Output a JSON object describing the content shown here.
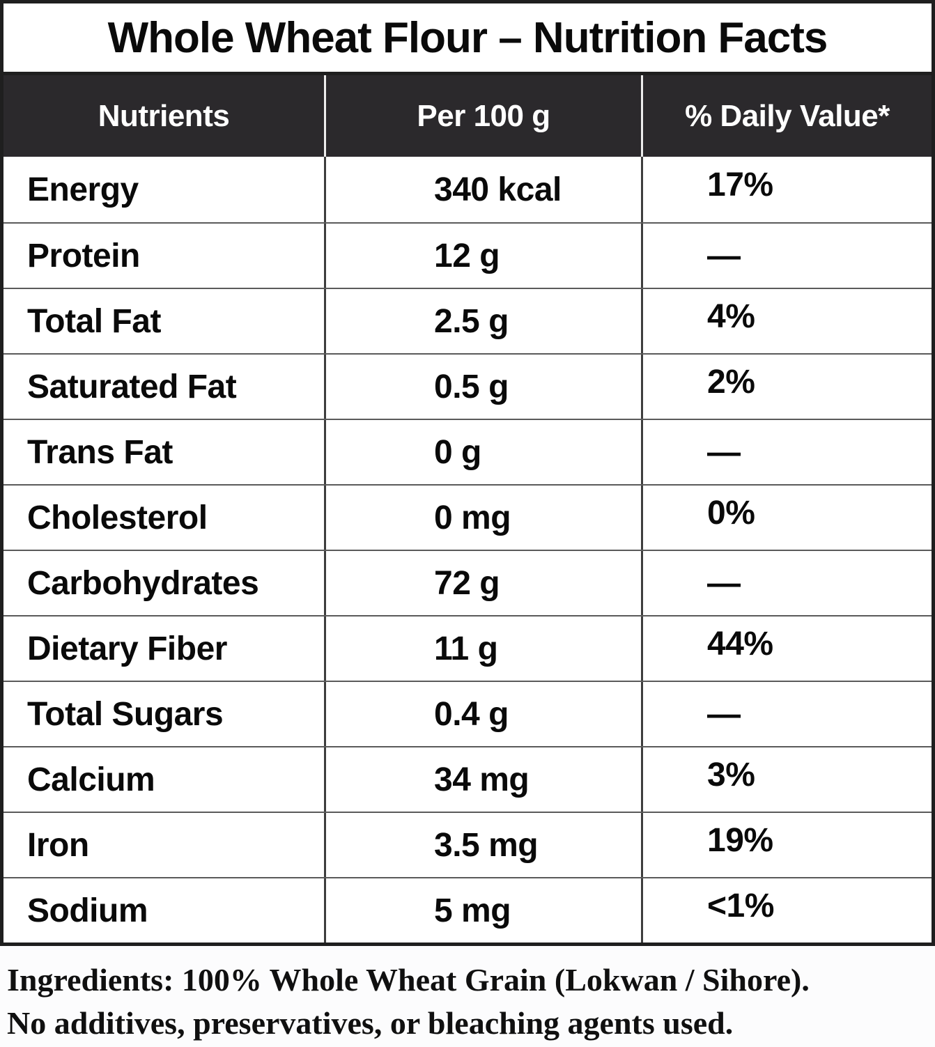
{
  "title": "Whole Wheat Flour – Nutrition Facts",
  "table": {
    "headers": [
      "Nutrients",
      "Per 100 g",
      "% Daily Value*"
    ],
    "rows": [
      {
        "nutrient": "Energy",
        "per_100g": "340 kcal",
        "daily_value": "17%"
      },
      {
        "nutrient": "Protein",
        "per_100g": "12 g",
        "daily_value": "—"
      },
      {
        "nutrient": "Total Fat",
        "per_100g": "2.5 g",
        "daily_value": "4%"
      },
      {
        "nutrient": "Saturated Fat",
        "per_100g": "0.5 g",
        "daily_value": "2%"
      },
      {
        "nutrient": "Trans Fat",
        "per_100g": "0 g",
        "daily_value": "—"
      },
      {
        "nutrient": "Cholesterol",
        "per_100g": "0 mg",
        "daily_value": "0%"
      },
      {
        "nutrient": "Carbohydrates",
        "per_100g": "72 g",
        "daily_value": "—"
      },
      {
        "nutrient": "Dietary Fiber",
        "per_100g": "11 g",
        "daily_value": "44%"
      },
      {
        "nutrient": "Total Sugars",
        "per_100g": "0.4 g",
        "daily_value": "—"
      },
      {
        "nutrient": "Calcium",
        "per_100g": "34 mg",
        "daily_value": "3%"
      },
      {
        "nutrient": "Iron",
        "per_100g": "3.5 mg",
        "daily_value": "19%"
      },
      {
        "nutrient": "Sodium",
        "per_100g": "5 mg",
        "daily_value": "<1%"
      }
    ]
  },
  "footer": {
    "line1": "Ingredients: 100% Whole Wheat Grain (Lokwan / Sihore).",
    "line2": "No additives, preservatives, or bleaching agents used."
  },
  "colors": {
    "page_bg": "#fcfcfd",
    "header_bg": "#2b292c",
    "header_text": "#ffffff",
    "body_text": "#0a0a0a",
    "row_divider": "#5a5a5a",
    "col_divider": "#3d3d3d",
    "header_col_divider": "#ededed",
    "outer_border": "#1f1f1f"
  }
}
